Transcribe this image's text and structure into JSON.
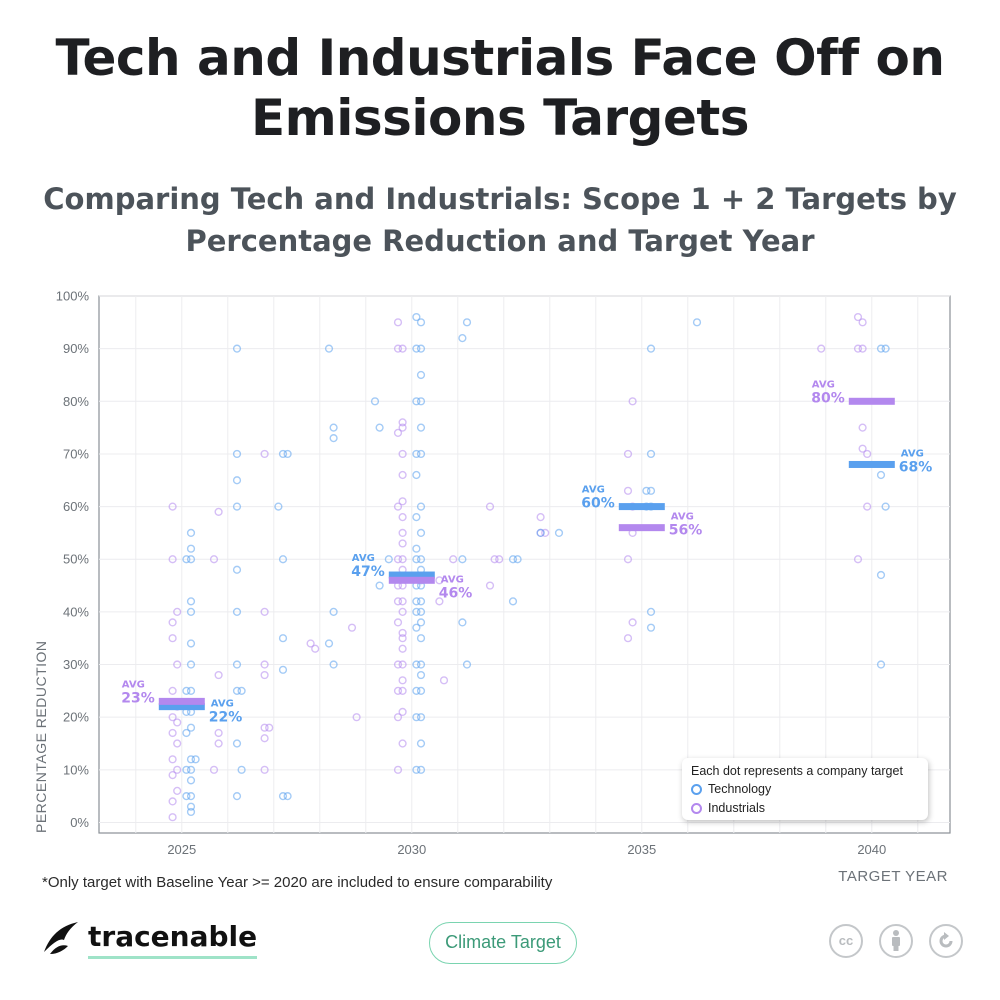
{
  "title": "Tech and Industrials Face Off on Emissions Targets",
  "subtitle": "Comparing Tech and Industrials: Scope 1 + 2 Targets by Percentage Reduction and Target Year",
  "footnote": "*Only target with Baseline Year >= 2020 are included to ensure comparability",
  "legend": {
    "title": "Each dot represents a company target",
    "technology": "Technology",
    "industrials": "Industrials"
  },
  "brand": {
    "name": "tracenable",
    "tag": "Climate Target",
    "license_cc": "cc"
  },
  "colors": {
    "technology": "#5aa0ee",
    "industrials": "#b388ee"
  },
  "chart_data": {
    "type": "scatter",
    "xlabel": "TARGET YEAR",
    "ylabel": "PERCENTAGE REDUCTION",
    "xlim": [
      2023.2,
      2041.7
    ],
    "ylim": [
      -2,
      100
    ],
    "xticks": [
      2025,
      2030,
      2035,
      2040
    ],
    "xtick_labels": [
      "2025",
      "2030",
      "2035",
      "2040"
    ],
    "yticks": [
      0,
      10,
      20,
      30,
      40,
      50,
      60,
      70,
      80,
      90,
      100
    ],
    "ytick_labels": [
      "0%",
      "10%",
      "20%",
      "30%",
      "40%",
      "50%",
      "60%",
      "70%",
      "80%",
      "90%",
      "100%"
    ],
    "grid": true,
    "legend_position": "bottom-right",
    "averages": [
      {
        "series": "Technology",
        "year": 2025,
        "value": 22,
        "label": "22%",
        "tag": "AVG"
      },
      {
        "series": "Industrials",
        "year": 2025,
        "value": 23,
        "label": "23%",
        "tag": "AVG"
      },
      {
        "series": "Technology",
        "year": 2030,
        "value": 47,
        "label": "47%",
        "tag": "AVG"
      },
      {
        "series": "Industrials",
        "year": 2030,
        "value": 46,
        "label": "46%",
        "tag": "AVG"
      },
      {
        "series": "Technology",
        "year": 2035,
        "value": 60,
        "label": "60%",
        "tag": "AVG"
      },
      {
        "series": "Industrials",
        "year": 2035,
        "value": 56,
        "label": "56%",
        "tag": "AVG"
      },
      {
        "series": "Technology",
        "year": 2040,
        "value": 68,
        "label": "68%",
        "tag": "AVG"
      },
      {
        "series": "Industrials",
        "year": 2040,
        "value": 80,
        "label": "80%",
        "tag": "AVG"
      }
    ],
    "series": [
      {
        "name": "Technology",
        "points": [
          [
            2025.2,
            55
          ],
          [
            2025.2,
            52
          ],
          [
            2025.2,
            50
          ],
          [
            2025.1,
            50
          ],
          [
            2025.2,
            42
          ],
          [
            2025.2,
            40
          ],
          [
            2025.2,
            34
          ],
          [
            2025.2,
            30
          ],
          [
            2025.2,
            25
          ],
          [
            2025.1,
            25
          ],
          [
            2025.2,
            21
          ],
          [
            2025.1,
            21
          ],
          [
            2025.2,
            18
          ],
          [
            2025.1,
            17
          ],
          [
            2025.2,
            12
          ],
          [
            2025.3,
            12
          ],
          [
            2025.2,
            10
          ],
          [
            2025.1,
            10
          ],
          [
            2025.2,
            8
          ],
          [
            2025.2,
            5
          ],
          [
            2025.1,
            5
          ],
          [
            2025.2,
            3
          ],
          [
            2025.2,
            2
          ],
          [
            2026.2,
            90
          ],
          [
            2026.2,
            70
          ],
          [
            2026.2,
            65
          ],
          [
            2026.2,
            60
          ],
          [
            2026.2,
            48
          ],
          [
            2026.2,
            40
          ],
          [
            2026.2,
            30
          ],
          [
            2026.2,
            25
          ],
          [
            2026.3,
            25
          ],
          [
            2026.2,
            15
          ],
          [
            2026.3,
            10
          ],
          [
            2026.2,
            5
          ],
          [
            2027.2,
            70
          ],
          [
            2027.3,
            70
          ],
          [
            2027.1,
            60
          ],
          [
            2027.2,
            50
          ],
          [
            2027.2,
            35
          ],
          [
            2027.2,
            29
          ],
          [
            2027.2,
            5
          ],
          [
            2027.3,
            5
          ],
          [
            2028.2,
            90
          ],
          [
            2028.3,
            75
          ],
          [
            2028.3,
            73
          ],
          [
            2028.3,
            40
          ],
          [
            2028.2,
            34
          ],
          [
            2028.3,
            30
          ],
          [
            2029.2,
            80
          ],
          [
            2029.3,
            75
          ],
          [
            2029.5,
            50
          ],
          [
            2029.3,
            45
          ],
          [
            2030.1,
            96
          ],
          [
            2030.2,
            95
          ],
          [
            2030.1,
            90
          ],
          [
            2030.2,
            90
          ],
          [
            2030.2,
            85
          ],
          [
            2030.1,
            80
          ],
          [
            2030.2,
            80
          ],
          [
            2030.2,
            75
          ],
          [
            2030.1,
            70
          ],
          [
            2030.2,
            70
          ],
          [
            2030.1,
            66
          ],
          [
            2030.2,
            60
          ],
          [
            2030.1,
            58
          ],
          [
            2030.2,
            55
          ],
          [
            2030.1,
            52
          ],
          [
            2030.2,
            50
          ],
          [
            2030.1,
            50
          ],
          [
            2030.2,
            48
          ],
          [
            2030.2,
            46
          ],
          [
            2030.2,
            45
          ],
          [
            2030.1,
            45
          ],
          [
            2030.2,
            42
          ],
          [
            2030.1,
            42
          ],
          [
            2030.2,
            40
          ],
          [
            2030.1,
            40
          ],
          [
            2030.2,
            38
          ],
          [
            2030.1,
            37
          ],
          [
            2030.2,
            35
          ],
          [
            2030.2,
            30
          ],
          [
            2030.1,
            30
          ],
          [
            2030.2,
            28
          ],
          [
            2030.2,
            25
          ],
          [
            2030.1,
            25
          ],
          [
            2030.2,
            20
          ],
          [
            2030.1,
            20
          ],
          [
            2030.2,
            15
          ],
          [
            2030.2,
            10
          ],
          [
            2030.1,
            10
          ],
          [
            2031.2,
            95
          ],
          [
            2031.1,
            92
          ],
          [
            2031.1,
            50
          ],
          [
            2031.1,
            38
          ],
          [
            2031.2,
            30
          ],
          [
            2032.2,
            50
          ],
          [
            2032.3,
            50
          ],
          [
            2032.2,
            42
          ],
          [
            2032.8,
            55
          ],
          [
            2033.2,
            55
          ],
          [
            2035.2,
            90
          ],
          [
            2035.2,
            70
          ],
          [
            2035.1,
            63
          ],
          [
            2035.2,
            63
          ],
          [
            2035.1,
            60
          ],
          [
            2035.2,
            60
          ],
          [
            2035.2,
            40
          ],
          [
            2035.2,
            37
          ],
          [
            2036.2,
            95
          ],
          [
            2040.2,
            90
          ],
          [
            2040.3,
            90
          ],
          [
            2040.2,
            66
          ],
          [
            2040.3,
            60
          ],
          [
            2040.2,
            47
          ],
          [
            2040.2,
            30
          ]
        ]
      },
      {
        "name": "Industrials",
        "points": [
          [
            2024.8,
            60
          ],
          [
            2024.8,
            50
          ],
          [
            2024.9,
            40
          ],
          [
            2024.8,
            38
          ],
          [
            2024.8,
            35
          ],
          [
            2024.9,
            30
          ],
          [
            2024.8,
            25
          ],
          [
            2024.9,
            22
          ],
          [
            2024.8,
            20
          ],
          [
            2024.9,
            19
          ],
          [
            2024.8,
            17
          ],
          [
            2024.9,
            15
          ],
          [
            2024.8,
            12
          ],
          [
            2024.9,
            10
          ],
          [
            2024.8,
            9
          ],
          [
            2024.9,
            6
          ],
          [
            2024.8,
            4
          ],
          [
            2024.8,
            1
          ],
          [
            2025.8,
            59
          ],
          [
            2025.7,
            50
          ],
          [
            2025.8,
            28
          ],
          [
            2025.8,
            17
          ],
          [
            2025.8,
            15
          ],
          [
            2025.7,
            10
          ],
          [
            2026.8,
            70
          ],
          [
            2026.8,
            40
          ],
          [
            2026.8,
            30
          ],
          [
            2026.8,
            28
          ],
          [
            2026.8,
            18
          ],
          [
            2026.9,
            18
          ],
          [
            2026.8,
            16
          ],
          [
            2026.8,
            10
          ],
          [
            2027.8,
            34
          ],
          [
            2027.9,
            33
          ],
          [
            2028.7,
            37
          ],
          [
            2028.8,
            20
          ],
          [
            2029.7,
            95
          ],
          [
            2029.8,
            90
          ],
          [
            2029.7,
            90
          ],
          [
            2029.8,
            76
          ],
          [
            2029.8,
            75
          ],
          [
            2029.7,
            74
          ],
          [
            2029.8,
            70
          ],
          [
            2029.8,
            66
          ],
          [
            2029.8,
            61
          ],
          [
            2029.7,
            60
          ],
          [
            2029.8,
            58
          ],
          [
            2029.8,
            55
          ],
          [
            2029.8,
            53
          ],
          [
            2029.8,
            50
          ],
          [
            2029.7,
            50
          ],
          [
            2029.8,
            48
          ],
          [
            2029.8,
            45
          ],
          [
            2029.7,
            45
          ],
          [
            2029.8,
            42
          ],
          [
            2029.7,
            42
          ],
          [
            2029.8,
            40
          ],
          [
            2029.7,
            38
          ],
          [
            2029.8,
            36
          ],
          [
            2029.8,
            35
          ],
          [
            2029.8,
            33
          ],
          [
            2029.8,
            30
          ],
          [
            2029.7,
            30
          ],
          [
            2029.8,
            27
          ],
          [
            2029.8,
            25
          ],
          [
            2029.7,
            25
          ],
          [
            2029.8,
            21
          ],
          [
            2029.7,
            20
          ],
          [
            2029.8,
            15
          ],
          [
            2029.7,
            10
          ],
          [
            2030.6,
            42
          ],
          [
            2030.6,
            46
          ],
          [
            2030.7,
            27
          ],
          [
            2030.9,
            50
          ],
          [
            2031.7,
            60
          ],
          [
            2031.8,
            50
          ],
          [
            2031.9,
            50
          ],
          [
            2031.7,
            45
          ],
          [
            2032.8,
            58
          ],
          [
            2032.9,
            55
          ],
          [
            2032.8,
            55
          ],
          [
            2034.8,
            80
          ],
          [
            2034.7,
            70
          ],
          [
            2034.7,
            63
          ],
          [
            2034.8,
            60
          ],
          [
            2034.8,
            55
          ],
          [
            2034.7,
            50
          ],
          [
            2034.8,
            38
          ],
          [
            2034.7,
            35
          ],
          [
            2038.9,
            90
          ],
          [
            2039.7,
            96
          ],
          [
            2039.8,
            95
          ],
          [
            2039.8,
            90
          ],
          [
            2039.7,
            90
          ],
          [
            2039.8,
            75
          ],
          [
            2039.8,
            71
          ],
          [
            2039.9,
            70
          ],
          [
            2039.9,
            60
          ],
          [
            2039.7,
            50
          ]
        ]
      }
    ]
  }
}
